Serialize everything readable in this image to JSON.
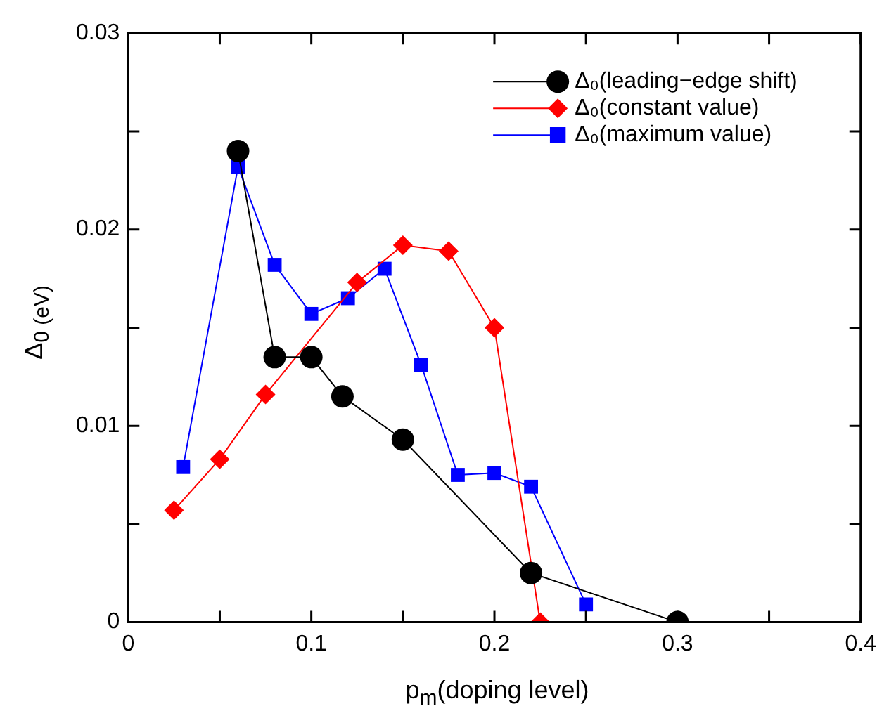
{
  "chart_data": {
    "type": "line",
    "xlabel": "p$_{m}$(doping level)",
    "ylabel": "Δ$_{0 (eV)}$",
    "xlim": [
      0,
      0.4
    ],
    "xticks": [
      0,
      {
        "value": 0.05,
        "label": null
      },
      0.1,
      {
        "value": 0.15,
        "label": null
      },
      0.2,
      {
        "value": 0.25,
        "label": null
      },
      0.3,
      {
        "value": 0.35,
        "label": null
      },
      0.4
    ],
    "ylim": [
      0,
      0.03
    ],
    "yticks": [
      0,
      {
        "value": 0.005,
        "label": null
      },
      0.01,
      {
        "value": 0.015,
        "label": null
      },
      0.02,
      {
        "value": 0.025,
        "label": null
      },
      0.03
    ],
    "grid": false,
    "legend": "top right",
    "line_style": "solid",
    "series": [
      {
        "name": "Δ₀(leading−edge shift)",
        "color": "#000000",
        "marker": "circle",
        "x": [
          0.06,
          0.08,
          0.1,
          0.117,
          0.15,
          0.22,
          0.3
        ],
        "values": [
          0.024,
          0.0135,
          0.0135,
          0.0115,
          0.0093,
          0.0025,
          0
        ]
      },
      {
        "name": "Δ₀(constant value)",
        "color": "#ff0000",
        "marker": "diamond",
        "x": [
          0.025,
          0.05,
          0.075,
          0.125,
          0.15,
          0.175,
          0.2,
          0.225
        ],
        "values": [
          0.0057,
          0.0083,
          0.0116,
          0.0173,
          0.0192,
          0.0189,
          0.015,
          0
        ]
      },
      {
        "name": "Δ₀(maximum value)",
        "color": "#0000ff",
        "marker": "square",
        "x": [
          0.03,
          0.06,
          0.08,
          0.1,
          0.12,
          0.14,
          0.16,
          0.18,
          0.2,
          0.22,
          0.25
        ],
        "values": [
          0.0079,
          0.0232,
          0.0182,
          0.0157,
          0.0165,
          0.018,
          0.0131,
          0.0075,
          0.0076,
          0.0069,
          0.0009
        ]
      }
    ]
  }
}
